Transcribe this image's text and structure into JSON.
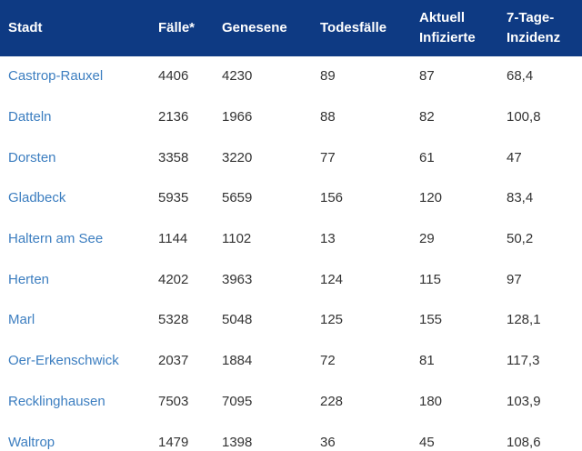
{
  "table": {
    "headers": {
      "stadt": "Stadt",
      "faelle": "Fälle*",
      "genesene": "Genesene",
      "todesfaelle": "Todesfälle",
      "aktuell_line1": "Aktuell",
      "aktuell_line2": "Infizierte",
      "inzidenz_line1": "7-Tage-",
      "inzidenz_line2": "Inzidenz"
    },
    "header_bg_color": "#0e3a83",
    "city_link_color": "#3c7ec0",
    "rows": [
      {
        "stadt": "Castrop-Rauxel",
        "faelle": "4406",
        "genesene": "4230",
        "todesfaelle": "89",
        "aktuell": "87",
        "inzidenz": "68,4"
      },
      {
        "stadt": "Datteln",
        "faelle": "2136",
        "genesene": "1966",
        "todesfaelle": "88",
        "aktuell": "82",
        "inzidenz": "100,8"
      },
      {
        "stadt": "Dorsten",
        "faelle": "3358",
        "genesene": "3220",
        "todesfaelle": "77",
        "aktuell": "61",
        "inzidenz": "47"
      },
      {
        "stadt": "Gladbeck",
        "faelle": "5935",
        "genesene": "5659",
        "todesfaelle": "156",
        "aktuell": "120",
        "inzidenz": "83,4"
      },
      {
        "stadt": "Haltern am See",
        "faelle": "1144",
        "genesene": "1102",
        "todesfaelle": "13",
        "aktuell": "29",
        "inzidenz": "50,2"
      },
      {
        "stadt": "Herten",
        "faelle": "4202",
        "genesene": "3963",
        "todesfaelle": "124",
        "aktuell": "115",
        "inzidenz": "97"
      },
      {
        "stadt": "Marl",
        "faelle": "5328",
        "genesene": "5048",
        "todesfaelle": "125",
        "aktuell": "155",
        "inzidenz": "128,1"
      },
      {
        "stadt": "Oer-Erkenschwick",
        "faelle": "2037",
        "genesene": "1884",
        "todesfaelle": "72",
        "aktuell": "81",
        "inzidenz": "117,3"
      },
      {
        "stadt": "Recklinghausen",
        "faelle": "7503",
        "genesene": "7095",
        "todesfaelle": "228",
        "aktuell": "180",
        "inzidenz": "103,9"
      },
      {
        "stadt": "Waltrop",
        "faelle": "1479",
        "genesene": "1398",
        "todesfaelle": "36",
        "aktuell": "45",
        "inzidenz": "108,6"
      }
    ]
  }
}
